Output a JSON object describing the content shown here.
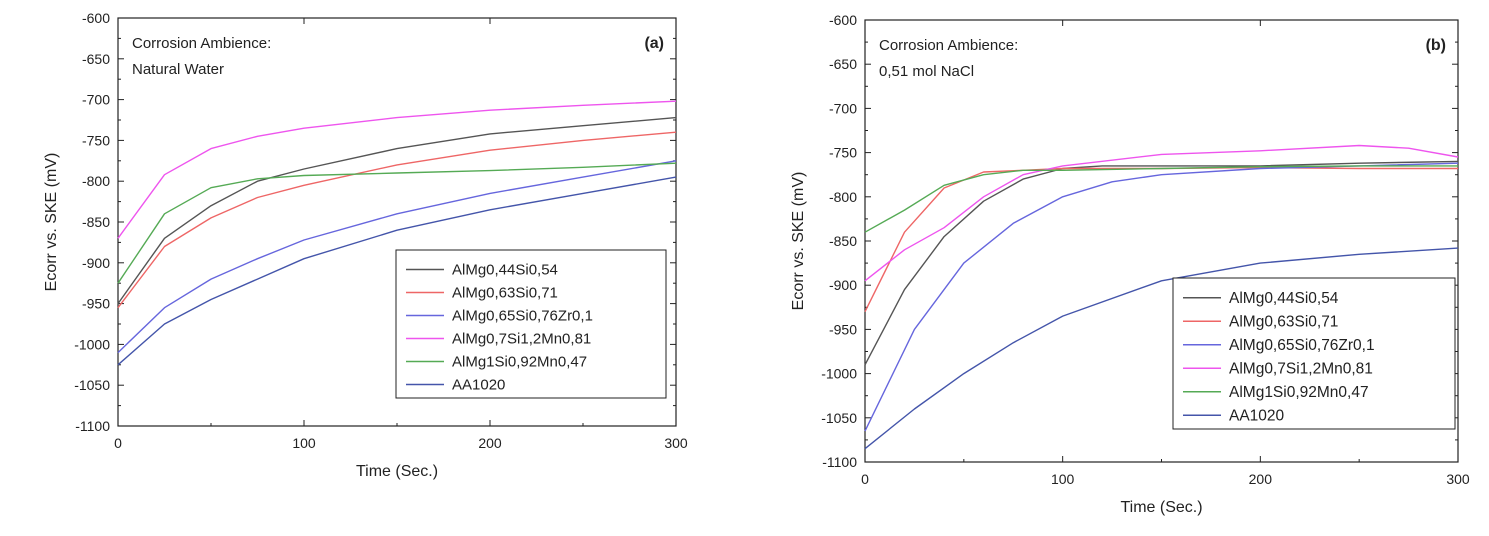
{
  "chart_data": [
    {
      "id": "a",
      "type": "line",
      "panel_label": "(a)",
      "title": "",
      "annotation_lines": [
        "Corrosion Ambience:",
        "Natural Water"
      ],
      "xlabel": "Time (Sec.)",
      "ylabel": "Ecorr vs. SKE (mV)",
      "xlim": [
        0,
        300
      ],
      "ylim": [
        -1100,
        -600
      ],
      "xticks": [
        0,
        100,
        200,
        300
      ],
      "yticks": [
        -1100,
        -1050,
        -1000,
        -950,
        -900,
        -850,
        -800,
        -750,
        -700,
        -650,
        -600
      ],
      "legend_position": "lower-right",
      "grid": false,
      "series": [
        {
          "name": "AlMg0,44Si0,54",
          "color": "#555555",
          "x": [
            0,
            25,
            50,
            75,
            100,
            150,
            200,
            250,
            300
          ],
          "y": [
            -950,
            -870,
            -830,
            -800,
            -785,
            -760,
            -742,
            -732,
            -722
          ]
        },
        {
          "name": "AlMg0,63Si0,71",
          "color": "#ee6666",
          "x": [
            0,
            25,
            50,
            75,
            100,
            150,
            200,
            250,
            300
          ],
          "y": [
            -955,
            -880,
            -845,
            -820,
            -805,
            -780,
            -762,
            -750,
            -740
          ]
        },
        {
          "name": "AlMg0,65Si0,76Zr0,1",
          "color": "#6666dd",
          "x": [
            0,
            25,
            50,
            75,
            100,
            150,
            200,
            250,
            300
          ],
          "y": [
            -1010,
            -955,
            -920,
            -895,
            -872,
            -840,
            -815,
            -795,
            -775
          ]
        },
        {
          "name": "AlMg0,7Si1,2Mn0,81",
          "color": "#ee55ee",
          "x": [
            0,
            25,
            50,
            75,
            100,
            150,
            200,
            250,
            300
          ],
          "y": [
            -870,
            -792,
            -760,
            -745,
            -735,
            -722,
            -713,
            -707,
            -702
          ]
        },
        {
          "name": "AlMg1Si0,92Mn0,47",
          "color": "#55aa55",
          "x": [
            0,
            25,
            50,
            75,
            100,
            150,
            200,
            250,
            300
          ],
          "y": [
            -925,
            -840,
            -808,
            -797,
            -793,
            -790,
            -787,
            -783,
            -778
          ]
        },
        {
          "name": "AA1020",
          "color": "#4455aa",
          "x": [
            0,
            25,
            50,
            75,
            100,
            150,
            200,
            250,
            300
          ],
          "y": [
            -1025,
            -975,
            -945,
            -920,
            -895,
            -860,
            -835,
            -815,
            -795
          ]
        }
      ]
    },
    {
      "id": "b",
      "type": "line",
      "panel_label": "(b)",
      "title": "",
      "annotation_lines": [
        "Corrosion Ambience:",
        "0,51 mol NaCl"
      ],
      "xlabel": "Time (Sec.)",
      "ylabel": "Ecorr vs. SKE (mV)",
      "xlim": [
        0,
        300
      ],
      "ylim": [
        -1100,
        -600
      ],
      "xticks": [
        0,
        100,
        200,
        300
      ],
      "yticks": [
        -1100,
        -1050,
        -1000,
        -950,
        -900,
        -850,
        -800,
        -750,
        -700,
        -650,
        -600
      ],
      "legend_position": "lower-right",
      "grid": false,
      "series": [
        {
          "name": "AlMg0,44Si0,54",
          "color": "#555555",
          "x": [
            0,
            20,
            40,
            60,
            80,
            100,
            120,
            150,
            200,
            250,
            300
          ],
          "y": [
            -990,
            -905,
            -845,
            -805,
            -780,
            -768,
            -765,
            -765,
            -765,
            -762,
            -760
          ]
        },
        {
          "name": "AlMg0,63Si0,71",
          "color": "#ee6666",
          "x": [
            0,
            20,
            40,
            60,
            80,
            100,
            150,
            200,
            250,
            300
          ],
          "y": [
            -930,
            -840,
            -790,
            -772,
            -770,
            -768,
            -768,
            -767,
            -768,
            -768
          ]
        },
        {
          "name": "AlMg0,65Si0,76Zr0,1",
          "color": "#6666dd",
          "x": [
            0,
            25,
            50,
            75,
            100,
            125,
            150,
            200,
            250,
            300
          ],
          "y": [
            -1065,
            -950,
            -875,
            -830,
            -800,
            -783,
            -775,
            -768,
            -765,
            -762
          ]
        },
        {
          "name": "AlMg0,7Si1,2Mn0,81",
          "color": "#ee55ee",
          "x": [
            0,
            20,
            40,
            60,
            80,
            100,
            150,
            200,
            250,
            275,
            300
          ],
          "y": [
            -895,
            -860,
            -835,
            -800,
            -775,
            -765,
            -752,
            -748,
            -742,
            -745,
            -755
          ]
        },
        {
          "name": "AlMg1Si0,92Mn0,47",
          "color": "#55aa55",
          "x": [
            0,
            20,
            40,
            60,
            80,
            100,
            150,
            200,
            250,
            300
          ],
          "y": [
            -840,
            -815,
            -787,
            -775,
            -770,
            -770,
            -768,
            -766,
            -765,
            -765
          ]
        },
        {
          "name": "AA1020",
          "color": "#4455aa",
          "x": [
            0,
            25,
            50,
            75,
            100,
            150,
            200,
            250,
            300
          ],
          "y": [
            -1085,
            -1040,
            -1000,
            -965,
            -935,
            -895,
            -875,
            -865,
            -858
          ]
        }
      ]
    }
  ]
}
